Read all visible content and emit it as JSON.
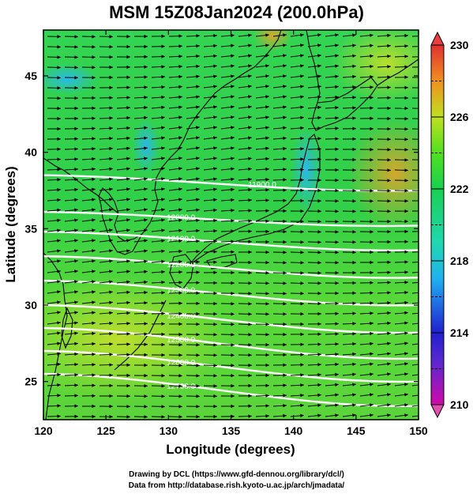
{
  "title": "MSM 15Z08Jan2024 (200.0hPa)",
  "map": {
    "x_axis": {
      "label": "Longitude (degrees)",
      "min": 120,
      "max": 150,
      "ticks": [
        120,
        125,
        130,
        135,
        140,
        145,
        150
      ]
    },
    "y_axis": {
      "label": "Latitude  (degrees)",
      "min": 22.5,
      "max": 48,
      "ticks": [
        25,
        30,
        35,
        40,
        45
      ]
    },
    "contours": [
      {
        "label": "11900.0",
        "lat_west": 38.5,
        "lat_east": 37.5,
        "label_lon": 137.5
      },
      {
        "label": "12000.0",
        "lat_west": 36.1,
        "lat_east": 35.2,
        "label_lon": 131.0
      },
      {
        "label": "12100.0",
        "lat_west": 34.8,
        "lat_east": 33.6,
        "label_lon": 131.0
      },
      {
        "label": "12200.0",
        "lat_west": 33.2,
        "lat_east": 31.8,
        "label_lon": 131.0
      },
      {
        "label": "12300.0",
        "lat_west": 31.6,
        "lat_east": 30.0,
        "label_lon": 131.0
      },
      {
        "label": "12400.0",
        "lat_west": 30.0,
        "lat_east": 28.2,
        "label_lon": 131.0
      },
      {
        "label": "12500.0",
        "lat_west": 28.5,
        "lat_east": 26.5,
        "label_lon": 131.0
      },
      {
        "label": "12600.0",
        "lat_west": 27.0,
        "lat_east": 25.0,
        "label_lon": 131.0
      },
      {
        "label": "12700.0",
        "lat_west": 25.5,
        "lat_east": 23.4,
        "label_lon": 131.0
      }
    ]
  },
  "colorbar": {
    "min": 210,
    "max": 230,
    "tick_labels": [
      "210",
      "214",
      "218",
      "222",
      "226",
      "230"
    ],
    "tick_values": [
      210,
      214,
      218,
      222,
      226,
      230
    ],
    "colors": [
      "#d10aaa",
      "#2020d0",
      "#20c8ff",
      "#18d060",
      "#3ae020",
      "#c8e020",
      "#f08020",
      "#e03030"
    ]
  },
  "credits": {
    "line1": "Drawing by DCL (https://www.gfd-dennou.org/library/dcl/)",
    "line2": "Data from http://database.rish.kyoto-u.ac.jp/arch/jmadata/"
  }
}
